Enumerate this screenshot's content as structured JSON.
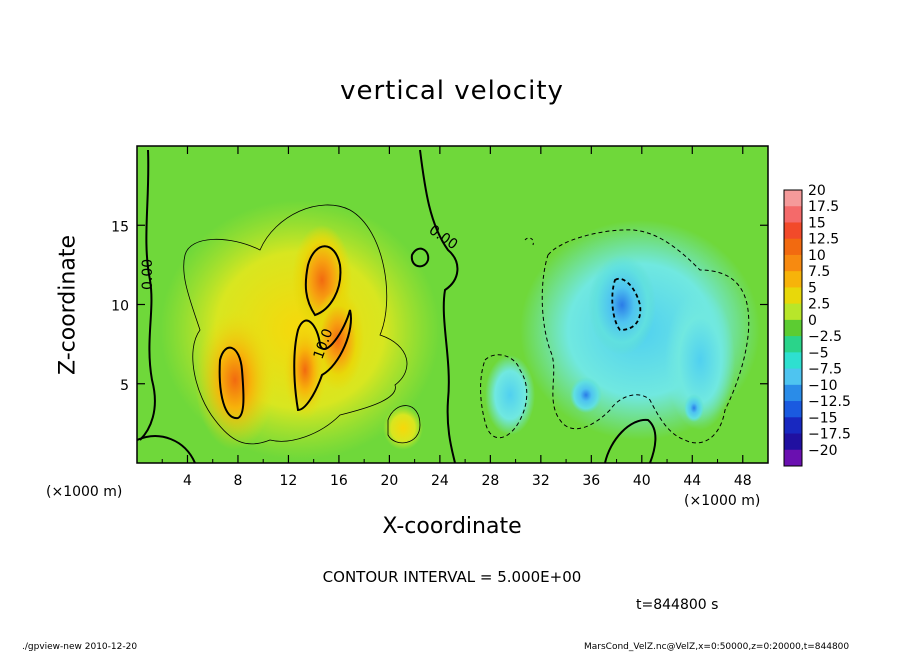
{
  "chart_data": {
    "type": "heatmap",
    "title": "vertical velocity",
    "xlabel": "X-coordinate",
    "ylabel": "Z-coordinate",
    "x_unit_label": "(×1000 m)",
    "xlim": [
      0,
      50
    ],
    "ylim": [
      0,
      20
    ],
    "x_ticks": [
      4,
      8,
      12,
      16,
      20,
      24,
      28,
      32,
      36,
      40,
      44,
      48
    ],
    "x_tick_labels": [
      "4",
      "8",
      "12",
      "16",
      "20",
      "24",
      "28",
      "32",
      "36",
      "40",
      "44",
      "48"
    ],
    "y_ticks": [
      5,
      10,
      15
    ],
    "y_tick_labels": [
      "5",
      "10",
      "15"
    ],
    "colorbar": {
      "labels": [
        "20",
        "17.5",
        "15",
        "12.5",
        "10",
        "7.5",
        "5",
        "2.5",
        "0",
        "−2.5",
        "−5",
        "−7.5",
        "−10",
        "−12.5",
        "−15",
        "−17.5",
        "−20"
      ],
      "values": [
        20,
        17.5,
        15,
        12.5,
        10,
        7.5,
        5,
        2.5,
        0,
        -2.5,
        -5,
        -7.5,
        -10,
        -12.5,
        -15,
        -17.5,
        -20
      ],
      "colors": [
        "#f59a9a",
        "#f46a6a",
        "#f24a2a",
        "#f26a10",
        "#f78a10",
        "#f7b30a",
        "#e8d80a",
        "#b8e62a",
        "#5ccc32",
        "#2ad48a",
        "#2ee0d0",
        "#4ec4f0",
        "#2a8ce8",
        "#1a5ae0",
        "#1828c0",
        "#2010a0",
        "#6a10b0"
      ]
    },
    "contour_labels": [
      "0.00",
      "0.00",
      "10.0"
    ],
    "features": [
      {
        "type": "updraft",
        "x": 7.5,
        "z": 5.5,
        "w": 11
      },
      {
        "type": "updraft",
        "x": 14.5,
        "z": 12.5,
        "w": 12
      },
      {
        "type": "updraft",
        "x": 16.5,
        "z": 8,
        "w": 11
      },
      {
        "type": "updraft",
        "x": 13.5,
        "z": 6,
        "w": 10
      },
      {
        "type": "updraft",
        "x": 21,
        "z": 2,
        "w": 4
      },
      {
        "type": "downdraft",
        "x": 38.5,
        "z": 10,
        "w": -11
      },
      {
        "type": "downdraft",
        "x": 44,
        "z": 4,
        "w": -8
      },
      {
        "type": "downdraft",
        "x": 36,
        "z": 4,
        "w": -7
      }
    ],
    "contour_interval_text": "CONTOUR INTERVAL = 5.000E+00",
    "time_text": "t=844800 s"
  },
  "footer": {
    "left": "./gpview-new   2010-12-20",
    "right": "MarsCond_VelZ.nc@VelZ,x=0:50000,z=0:20000,t=844800"
  }
}
